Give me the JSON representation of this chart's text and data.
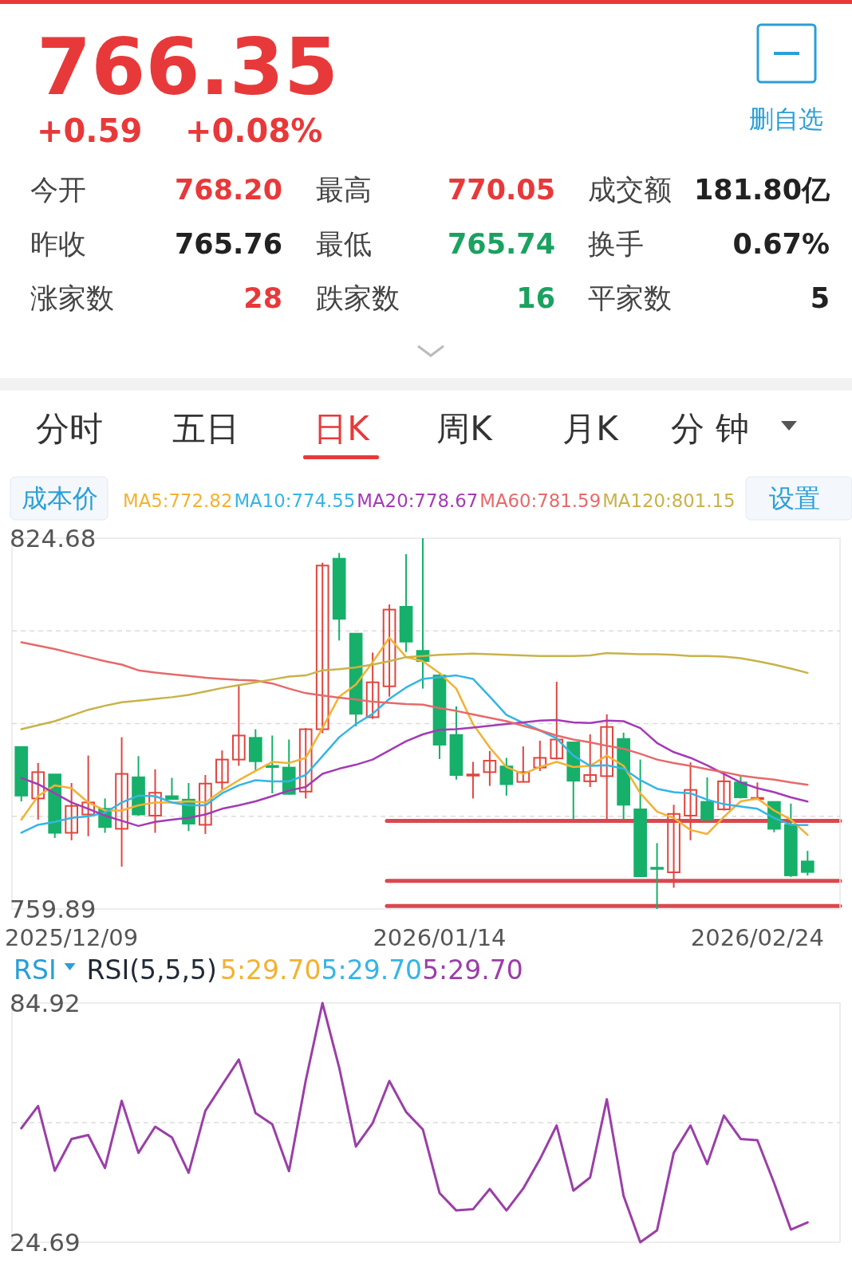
{
  "chart_data": [
    {
      "type": "other",
      "title": "766.35",
      "annotations": [
        "+0.59",
        "+0.08%",
        "删自选",
        "今开",
        "768.20",
        "最高",
        "770.05",
        "成交额",
        "181.80亿",
        "昨收",
        "765.76",
        "最低",
        "765.74",
        "换手",
        "0.67%",
        "涨家数",
        "28",
        "跌家数",
        "16",
        "平家数",
        "5",
        "分时",
        "五日",
        "日K",
        "周K",
        "月K",
        "分钟",
        "成本价",
        "设置"
      ]
    },
    {
      "type": "candlestick",
      "categories": [
        null,
        null,
        null,
        "2025/12/09",
        null,
        null,
        null,
        null,
        null,
        null,
        null,
        null,
        null,
        null,
        null,
        null,
        null,
        null,
        null,
        null,
        null,
        null,
        null,
        null,
        null,
        "2026/01/14",
        null,
        null,
        null,
        null,
        null,
        null,
        null,
        null,
        null,
        null,
        null,
        null,
        null,
        null,
        null,
        null,
        null,
        null,
        "2026/02/24",
        null,
        null,
        null
      ],
      "ohlc": [
        [
          788.2,
          788.2,
          778.7,
          779.7
        ],
        [
          779.2,
          785.4,
          775.5,
          783.8
        ],
        [
          783.4,
          783.4,
          772.3,
          773.2
        ],
        [
          773.2,
          781.9,
          771.9,
          777.9
        ],
        [
          776.4,
          786.7,
          772.6,
          778.5
        ],
        [
          777.4,
          779.2,
          773.2,
          774.2
        ],
        [
          773.9,
          789.9,
          767.3,
          783.5
        ],
        [
          782.9,
          786.6,
          776.2,
          776.4
        ],
        [
          776.2,
          784.3,
          773.2,
          780.2
        ],
        [
          779.6,
          782.8,
          779.1,
          779.1
        ],
        [
          779.0,
          781.9,
          773.5,
          774.8
        ],
        [
          774.6,
          783.3,
          773.0,
          781.8
        ],
        [
          782.0,
          787.6,
          780.8,
          786.0
        ],
        [
          786.0,
          798.9,
          784.9,
          790.2
        ],
        [
          789.8,
          791.3,
          784.0,
          785.7
        ],
        [
          784.9,
          790.2,
          780.1,
          784.7
        ],
        [
          784.6,
          789.5,
          779.9,
          780.0
        ],
        [
          780.4,
          791.5,
          779.2,
          791.3
        ],
        [
          791.3,
          820.4,
          790.6,
          819.9
        ],
        [
          821.1,
          822.1,
          806.8,
          810.6
        ],
        [
          808.0,
          808.0,
          791.8,
          794.0
        ],
        [
          793.4,
          804.7,
          793.1,
          799.5
        ],
        [
          798.8,
          813.1,
          797.0,
          812.2
        ],
        [
          812.7,
          821.9,
          804.8,
          806.6
        ],
        [
          805.0,
          824.68,
          798.4,
          803.2
        ],
        [
          800.7,
          801.2,
          786.1,
          788.6
        ],
        [
          790.3,
          795.3,
          782.5,
          783.3
        ],
        [
          783.2,
          785.6,
          779.2,
          783.4
        ],
        [
          783.8,
          787.5,
          781.4,
          785.8
        ],
        [
          784.8,
          786.3,
          779.7,
          781.7
        ],
        [
          782.1,
          788.3,
          782.1,
          783.8
        ],
        [
          784.6,
          789.3,
          784.0,
          786.3
        ],
        [
          786.2,
          799.6,
          786.0,
          789.5
        ],
        [
          789.0,
          789.0,
          775.5,
          782.3
        ],
        [
          782.2,
          790.4,
          781.2,
          783.3
        ],
        [
          783.1,
          793.9,
          775.5,
          791.7
        ],
        [
          789.6,
          790.7,
          775.6,
          778.1
        ],
        [
          777.3,
          786.0,
          765.5,
          765.6
        ],
        [
          767.1,
          771.4,
          759.89,
          767.0
        ],
        [
          766.3,
          778.1,
          763.6,
          776.5
        ],
        [
          776.2,
          785.5,
          771.9,
          780.7
        ],
        [
          778.6,
          782.9,
          775.5,
          775.5
        ],
        [
          777.3,
          783.8,
          777.1,
          782.2
        ],
        [
          782.0,
          783.3,
          779.2,
          779.4
        ],
        [
          779.1,
          782.0,
          779.0,
          779.3
        ],
        [
          778.6,
          778.6,
          773.3,
          773.9
        ],
        [
          774.6,
          778.3,
          765.5,
          765.76
        ],
        [
          768.2,
          770.05,
          765.74,
          766.35
        ]
      ],
      "series": [
        {
          "name": "MA5:772.82",
          "type": "line",
          "color": "#f2b233",
          "values": [
            775.5,
            779.6,
            781.5,
            781.0,
            778.5,
            777.1,
            777.1,
            778.0,
            778.5,
            778.5,
            778.7,
            778.5,
            780.6,
            782.4,
            784.0,
            785.6,
            785.4,
            786.3,
            791.5,
            797.0,
            799.1,
            803.0,
            807.3,
            803.9,
            803.2,
            801.1,
            798.4,
            792.2,
            788.1,
            784.7,
            783.5,
            784.7,
            785.6,
            784.7,
            784.9,
            786.7,
            784.9,
            780.1,
            776.9,
            775.8,
            773.7,
            773.0,
            776.0,
            778.7,
            779.2,
            777.1,
            775.5,
            772.82
          ]
        },
        {
          "name": "MA10:774.55",
          "type": "line",
          "color": "#35b5e5",
          "values": [
            773.2,
            774.6,
            775.1,
            775.8,
            776.1,
            776.7,
            778.5,
            779.7,
            779.6,
            778.5,
            778.0,
            778.0,
            780.1,
            781.5,
            782.4,
            782.2,
            782.2,
            783.3,
            786.6,
            789.9,
            792.2,
            794.0,
            796.6,
            798.6,
            800.1,
            800.4,
            800.7,
            800.1,
            797.0,
            793.8,
            792.4,
            791.1,
            789.7,
            786.7,
            784.9,
            785.0,
            784.4,
            782.4,
            780.9,
            780.3,
            780.1,
            779.0,
            778.2,
            777.8,
            777.4,
            775.8,
            774.6,
            774.55
          ]
        },
        {
          "name": "MA20:778.67",
          "type": "line",
          "color": "#a43bb5",
          "values": [
            782.8,
            781.7,
            780.1,
            778.5,
            777.4,
            776.2,
            775.3,
            774.4,
            775.1,
            775.5,
            775.8,
            776.4,
            777.4,
            778.0,
            778.7,
            779.6,
            780.6,
            781.2,
            783.5,
            784.4,
            785.1,
            786.0,
            787.6,
            789.2,
            790.4,
            791.2,
            791.3,
            791.6,
            791.9,
            792.2,
            792.5,
            792.8,
            792.9,
            792.5,
            792.4,
            792.8,
            792.7,
            791.5,
            788.9,
            787.3,
            786.3,
            785.0,
            783.5,
            782.0,
            781.0,
            780.3,
            779.4,
            778.67
          ]
        },
        {
          "name": "MA60:781.59",
          "type": "line",
          "color": "#e66a6a",
          "values": [
            806.5,
            805.9,
            805.3,
            804.6,
            803.9,
            803.2,
            802.6,
            801.6,
            801.2,
            800.9,
            800.6,
            800.3,
            800.1,
            799.9,
            799.8,
            799.3,
            798.4,
            797.6,
            797.2,
            796.8,
            796.5,
            796.1,
            795.9,
            795.7,
            795.6,
            795.0,
            794.5,
            793.9,
            793.3,
            792.7,
            791.9,
            791.1,
            790.2,
            789.5,
            789.0,
            788.4,
            787.9,
            787.0,
            786.0,
            785.4,
            784.9,
            784.3,
            783.8,
            783.2,
            782.8,
            782.5,
            782.0,
            781.59
          ]
        },
        {
          "name": "MA120:801.15",
          "type": "line",
          "color": "#c9b24a",
          "values": [
            791.3,
            792.0,
            792.7,
            793.7,
            794.7,
            795.4,
            796.0,
            796.3,
            796.6,
            796.9,
            797.3,
            797.9,
            798.5,
            799.0,
            799.5,
            800.0,
            800.5,
            800.7,
            801.6,
            801.8,
            802.1,
            802.6,
            803.2,
            803.9,
            804.1,
            804.3,
            804.4,
            804.5,
            804.4,
            804.3,
            804.2,
            804.1,
            804.1,
            804.1,
            804.2,
            804.6,
            804.5,
            804.4,
            804.4,
            804.3,
            804.1,
            804.1,
            804.0,
            803.7,
            803.2,
            802.6,
            801.9,
            801.15
          ]
        }
      ],
      "ylim": [
        759.89,
        824.68
      ],
      "yticks": [
        824.68,
        {
          "value": 808.48,
          "label": null
        },
        {
          "value": 792.29,
          "label": null
        },
        {
          "value": 776.09,
          "label": null
        },
        759.89
      ],
      "grid": true,
      "legend": "top",
      "ref_lines": [
        {
          "axis": "y",
          "value": 775.3,
          "color": "#d9484f"
        },
        {
          "axis": "y",
          "value": 764.8,
          "color": "#d9484f"
        },
        {
          "axis": "y",
          "value": 760.4,
          "color": "#d9484f"
        }
      ]
    },
    {
      "type": "line",
      "title": "RSI",
      "subtitle": "RSI(5,5,5)",
      "annotations": [
        "5:29.70",
        "5:29.70"
      ],
      "categories": [
        null,
        null,
        null,
        null,
        null,
        null,
        null,
        null,
        null,
        null,
        null,
        null,
        null,
        null,
        null,
        null,
        null,
        null,
        null,
        null,
        null,
        null,
        null,
        null,
        null,
        null,
        null,
        null,
        null,
        null,
        null,
        null,
        null,
        null,
        null,
        null,
        null,
        null,
        null,
        null,
        null,
        null,
        null,
        null,
        null,
        null,
        null,
        null
      ],
      "series": [
        {
          "name": "5:29.70",
          "color": "#9b3ea8",
          "values": [
            53.4,
            59.0,
            42.7,
            50.7,
            51.7,
            43.4,
            60.3,
            47.2,
            53.8,
            51.1,
            42.2,
            57.8,
            64.3,
            70.7,
            57.2,
            54.4,
            42.6,
            65.4,
            84.92,
            68.7,
            48.8,
            54.7,
            65.3,
            57.5,
            53.1,
            37.1,
            32.7,
            33.0,
            38.1,
            32.7,
            38.2,
            45.6,
            54.1,
            37.7,
            41.0,
            60.7,
            36.4,
            24.69,
            27.7,
            47.2,
            54.1,
            44.4,
            56.6,
            50.7,
            50.4,
            39.6,
            27.9,
            29.7
          ]
        }
      ],
      "ylim": [
        24.69,
        84.92
      ],
      "yticks": [
        84.92,
        {
          "value": 54.805,
          "label": null
        },
        24.69
      ],
      "grid": true,
      "legend": "top"
    }
  ]
}
